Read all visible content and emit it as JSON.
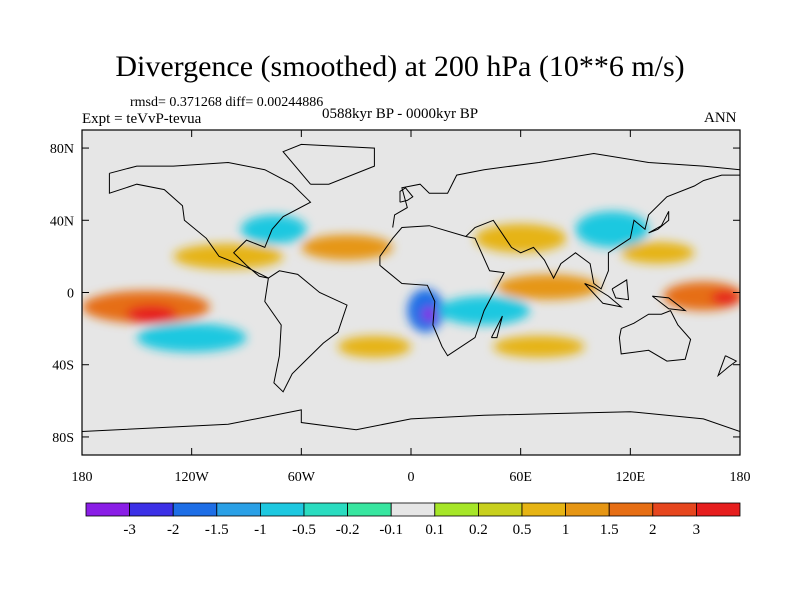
{
  "title": "Divergence (smoothed) at 200 hPa (10**6 m/s)",
  "stats": "rmsd= 0.371268 diff= 0.00244886",
  "experiment": "Expt = teVvP-tevua",
  "period": "0588kyr BP - 0000kyr BP",
  "season": "ANN",
  "map": {
    "lon_range": [
      -180,
      180
    ],
    "lat_range": [
      -90,
      90
    ],
    "lon_ticks": [
      {
        "value": -180,
        "label": "180"
      },
      {
        "value": -120,
        "label": "120W"
      },
      {
        "value": -60,
        "label": "60W"
      },
      {
        "value": 0,
        "label": "0"
      },
      {
        "value": 60,
        "label": "60E"
      },
      {
        "value": 120,
        "label": "120E"
      },
      {
        "value": 180,
        "label": "180"
      }
    ],
    "lat_ticks": [
      {
        "value": 80,
        "label": "80N"
      },
      {
        "value": 40,
        "label": "40N"
      },
      {
        "value": 0,
        "label": "0"
      },
      {
        "value": -40,
        "label": "40S"
      },
      {
        "value": -80,
        "label": "80S"
      }
    ],
    "background_color": "#e6e6e6"
  },
  "colorbar": {
    "colors": [
      "#8a1ee6",
      "#3c30e6",
      "#1e6ee6",
      "#2aa0e6",
      "#1ec8e0",
      "#2adcc0",
      "#38e6a0",
      "#e6e6e6",
      "#a6e628",
      "#c8d01e",
      "#e6b414",
      "#e69614",
      "#e66e14",
      "#e6461e",
      "#e61e1e"
    ],
    "labels": [
      "-3",
      "-2",
      "-1.5",
      "-1",
      "-0.5",
      "-0.2",
      "-0.1",
      "0.1",
      "0.2",
      "0.5",
      "1",
      "1.5",
      "2",
      "3"
    ]
  },
  "blobs": [
    {
      "lon": -145,
      "lat": -8,
      "rx": 35,
      "ry": 9,
      "level": 12
    },
    {
      "lon": -142,
      "lat": -12,
      "rx": 14,
      "ry": 5,
      "level": 14
    },
    {
      "lon": 160,
      "lat": -2,
      "rx": 22,
      "ry": 8,
      "level": 12
    },
    {
      "lon": 172,
      "lat": -3,
      "rx": 8,
      "ry": 4,
      "level": 14
    },
    {
      "lon": 8,
      "lat": -10,
      "rx": 10,
      "ry": 12,
      "level": 2
    },
    {
      "lon": 10,
      "lat": -12,
      "rx": 4,
      "ry": 4,
      "level": 0
    },
    {
      "lon": -100,
      "lat": 20,
      "rx": 30,
      "ry": 7,
      "level": 10
    },
    {
      "lon": -35,
      "lat": 25,
      "rx": 25,
      "ry": 7,
      "level": 11
    },
    {
      "lon": 75,
      "lat": 3,
      "rx": 28,
      "ry": 7,
      "level": 11
    },
    {
      "lon": 135,
      "lat": 22,
      "rx": 20,
      "ry": 6,
      "level": 10
    },
    {
      "lon": 60,
      "lat": 30,
      "rx": 25,
      "ry": 8,
      "level": 10
    },
    {
      "lon": -120,
      "lat": -25,
      "rx": 30,
      "ry": 8,
      "level": 4
    },
    {
      "lon": 40,
      "lat": -10,
      "rx": 25,
      "ry": 8,
      "level": 4
    },
    {
      "lon": 110,
      "lat": 35,
      "rx": 20,
      "ry": 10,
      "level": 4
    },
    {
      "lon": -75,
      "lat": 35,
      "rx": 18,
      "ry": 8,
      "level": 4
    },
    {
      "lon": -20,
      "lat": -30,
      "rx": 20,
      "ry": 6,
      "level": 10
    },
    {
      "lon": 70,
      "lat": -30,
      "rx": 25,
      "ry": 6,
      "level": 10
    }
  ]
}
